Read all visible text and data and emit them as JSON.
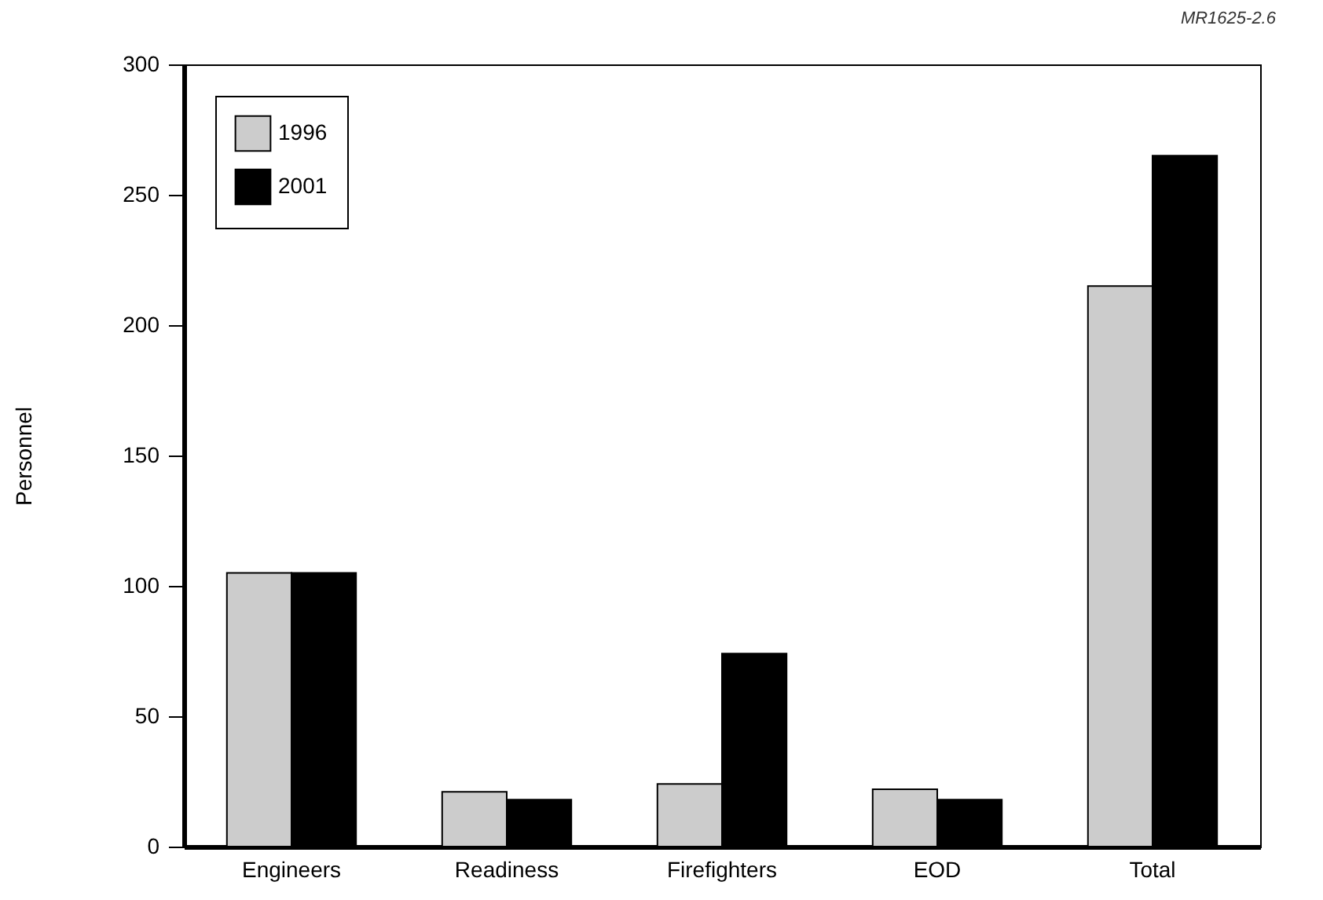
{
  "chart_data": {
    "type": "bar",
    "categories": [
      "Engineers",
      "Readiness",
      "Firefighters",
      "EOD",
      "Total"
    ],
    "series": [
      {
        "name": "1996",
        "color": "#cccccc",
        "values": [
          105,
          21,
          24,
          22,
          215
        ]
      },
      {
        "name": "2001",
        "color": "#000000",
        "values": [
          105,
          18,
          74,
          18,
          265
        ]
      }
    ],
    "ylabel": "Personnel",
    "ylim": [
      0,
      300
    ],
    "yticks": [
      0,
      50,
      100,
      150,
      200,
      250,
      300
    ],
    "grid": false,
    "legend": "top left",
    "annotations": [
      "MR1625-2.6"
    ]
  }
}
